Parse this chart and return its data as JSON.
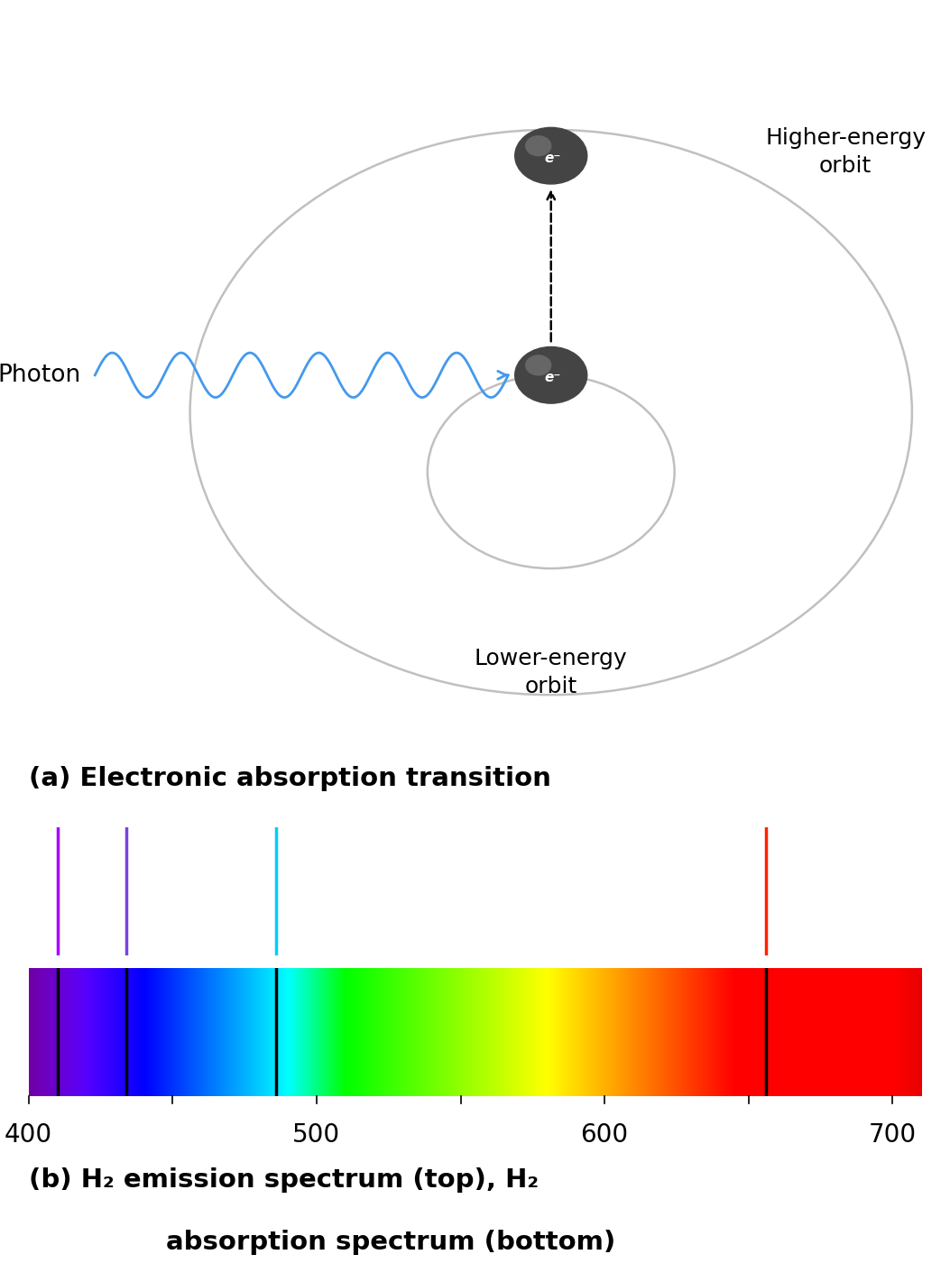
{
  "fig_width": 10.53,
  "fig_height": 14.21,
  "bg_color": "#ffffff",
  "title_a": "(a) Electronic absorption transition",
  "title_b_line1": "(b) H₂ emission spectrum (top), H₂",
  "title_b_line2": "absorption spectrum (bottom)",
  "photon_label": "Photon",
  "higher_label": "Higher-energy\norbit",
  "lower_label": "Lower-energy\norbit",
  "wavelength_min": 400,
  "wavelength_max": 710,
  "emission_lines": [
    {
      "wl": 410,
      "color": "#AA00FF"
    },
    {
      "wl": 434,
      "color": "#7744DD"
    },
    {
      "wl": 486,
      "color": "#00CCFF"
    },
    {
      "wl": 656,
      "color": "#FF2200"
    }
  ],
  "absorption_lines": [
    410,
    434,
    486,
    656
  ],
  "tick_positions": [
    400,
    450,
    500,
    550,
    600,
    650,
    700
  ],
  "tick_labels": [
    "400",
    "",
    "500",
    "",
    "600",
    "",
    "700"
  ]
}
